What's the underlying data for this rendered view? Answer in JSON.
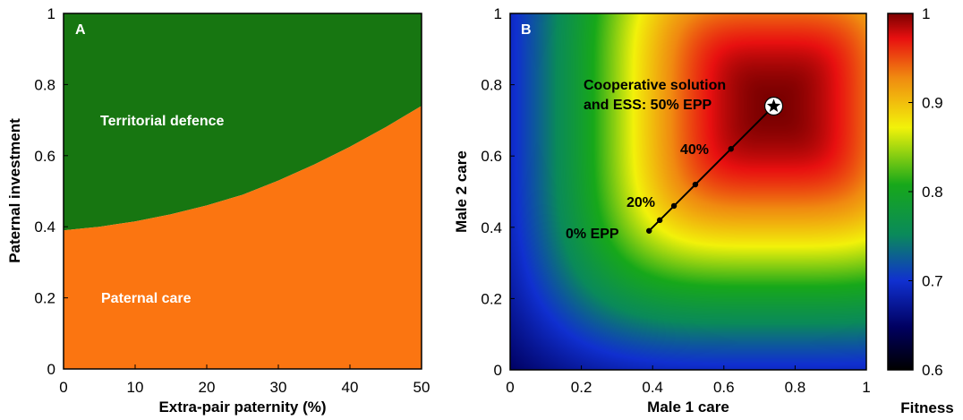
{
  "chart_data": [
    {
      "type": "area",
      "panel_label": "A",
      "xlabel": "Extra-pair paternity (%)",
      "ylabel": "Paternal investment",
      "xlim": [
        0,
        50
      ],
      "ylim": [
        0,
        1
      ],
      "xticks": [
        "0",
        "10",
        "20",
        "30",
        "40",
        "50"
      ],
      "yticks": [
        "0",
        "0.2",
        "0.4",
        "0.6",
        "0.8",
        "1"
      ],
      "boundary": {
        "x": [
          0,
          5,
          10,
          15,
          20,
          25,
          30,
          35,
          40,
          45,
          50
        ],
        "y": [
          0.39,
          0.4,
          0.415,
          0.435,
          0.46,
          0.49,
          0.53,
          0.575,
          0.625,
          0.68,
          0.74
        ]
      },
      "regions": [
        {
          "label": "Territorial defence",
          "color": "#177611"
        },
        {
          "label": "Paternal care",
          "color": "#fb7511"
        }
      ]
    },
    {
      "type": "heatmap",
      "panel_label": "B",
      "xlabel": "Male 1 care",
      "ylabel": "Male 2 care",
      "xlim": [
        0,
        1
      ],
      "ylim": [
        0,
        1
      ],
      "xticks": [
        "0",
        "0.2",
        "0.4",
        "0.6",
        "0.8",
        "1"
      ],
      "yticks": [
        "0",
        "0.2",
        "0.4",
        "0.6",
        "0.8",
        "1"
      ],
      "peak": {
        "x": 0.74,
        "y": 0.74
      },
      "path": {
        "x": [
          0.39,
          0.42,
          0.46,
          0.52,
          0.62,
          0.74
        ],
        "y": [
          0.39,
          0.42,
          0.46,
          0.52,
          0.62,
          0.74
        ]
      },
      "annotations": [
        {
          "text": "0% EPP",
          "x": 0.39,
          "y": 0.39
        },
        {
          "text": "20%",
          "x": 0.46,
          "y": 0.46
        },
        {
          "text": "40%",
          "x": 0.62,
          "y": 0.62
        },
        {
          "text": "Cooperative solution",
          "x": 0.74,
          "y": 0.74
        },
        {
          "text": "and ESS: 50% EPP",
          "x": 0.74,
          "y": 0.74
        }
      ],
      "colorbar": {
        "label": "Fitness",
        "range": [
          0.6,
          1
        ],
        "ticks": [
          "0.6",
          "0.7",
          "0.8",
          "0.9",
          "1"
        ]
      }
    }
  ]
}
